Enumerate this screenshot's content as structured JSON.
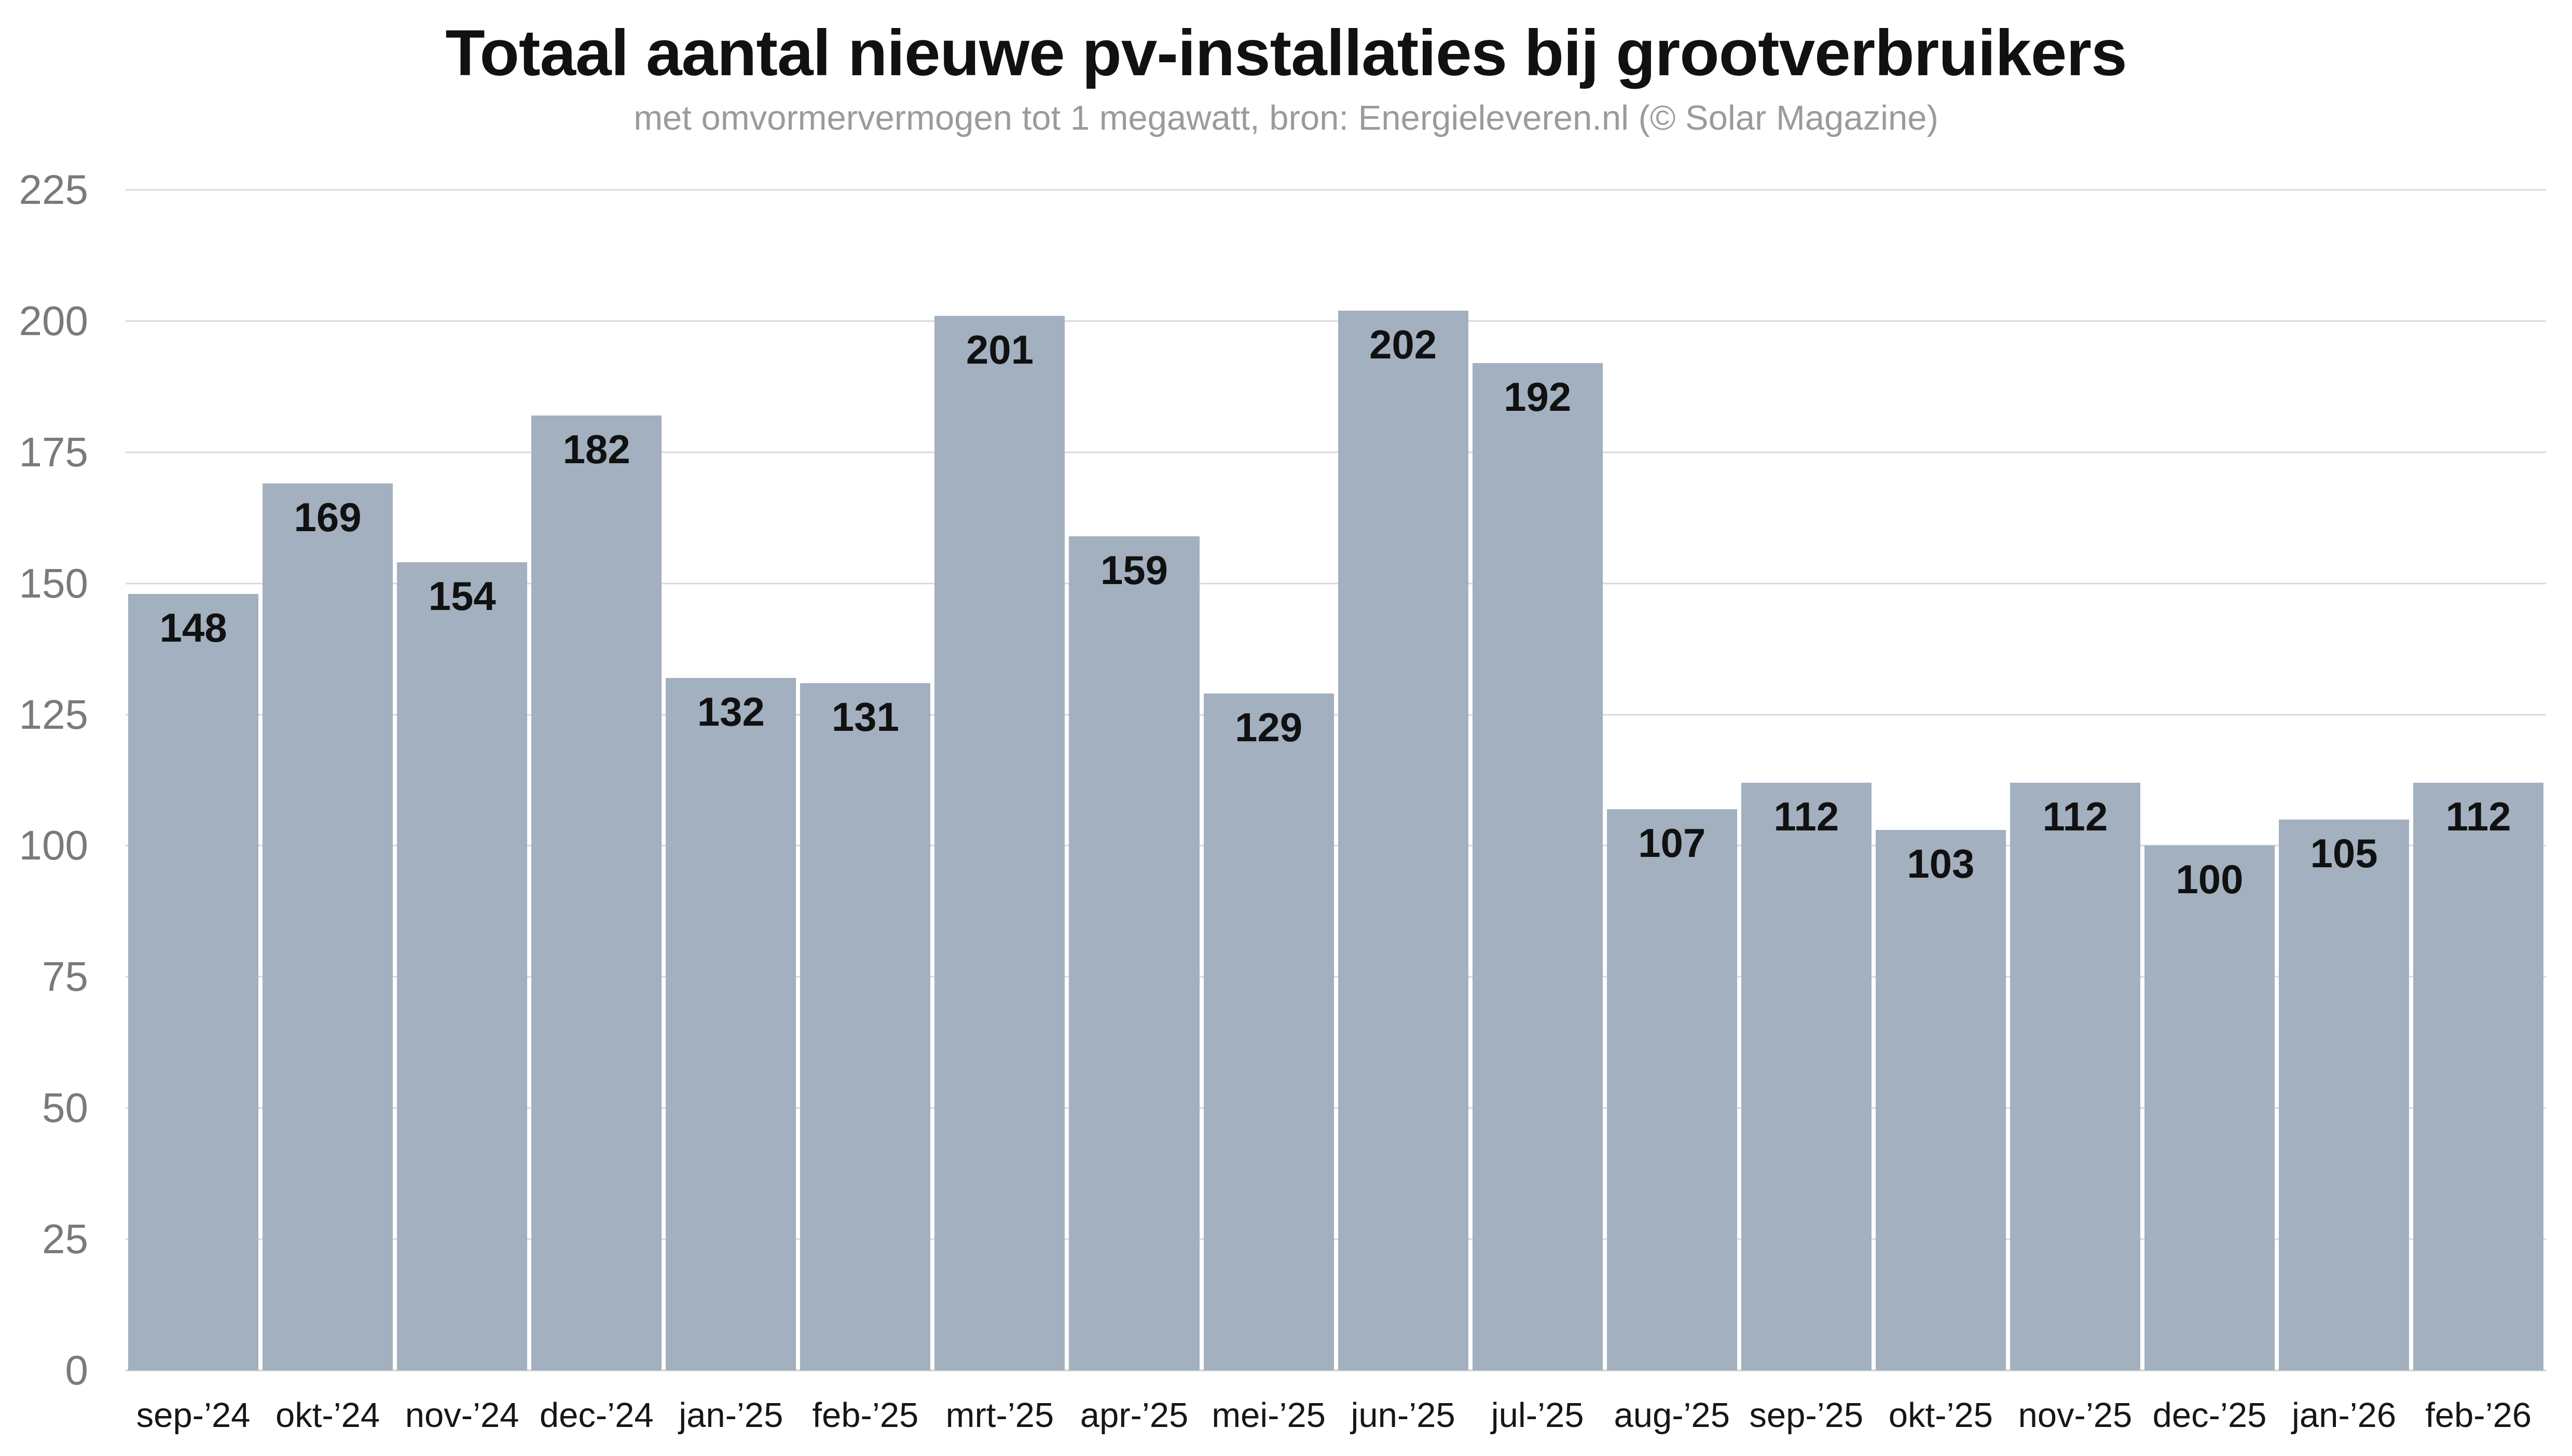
{
  "chart_data": {
    "type": "bar",
    "title": "Totaal aantal nieuwe pv-installaties bij grootverbruikers",
    "subtitle": "met omvormervermogen tot 1 megawatt, bron: Energieleveren.nl (© Solar Magazine)",
    "categories": [
      "sep-’24",
      "okt-’24",
      "nov-’24",
      "dec-’24",
      "jan-’25",
      "feb-’25",
      "mrt-’25",
      "apr-’25",
      "mei-’25",
      "jun-’25",
      "jul-’25",
      "aug-’25",
      "sep-’25",
      "okt-’25",
      "nov-’25",
      "dec-’25",
      "jan-’26",
      "feb-’26"
    ],
    "values": [
      148,
      169,
      154,
      182,
      132,
      131,
      201,
      159,
      129,
      202,
      192,
      107,
      112,
      103,
      112,
      100,
      105,
      112
    ],
    "xlabel": "",
    "ylabel": "",
    "ylim": [
      0,
      225
    ],
    "yticks": [
      0,
      25,
      50,
      75,
      100,
      125,
      150,
      175,
      200,
      225
    ],
    "grid": true,
    "legend": false,
    "bar_value_labels": true,
    "colors": {
      "bg": "#ffffff",
      "bar": "#a2b0bf",
      "bar_label": "#111111",
      "gridline": "#d8d8d8",
      "baseline": "#cfcfcf",
      "axis_label": "#7a7a7a",
      "x_label": "#161616",
      "title": "#111111",
      "subtitle": "#9b9b9b"
    }
  }
}
